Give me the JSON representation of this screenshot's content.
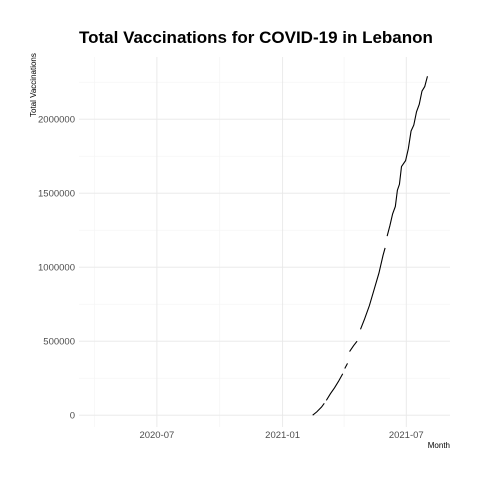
{
  "chart_data": {
    "type": "line",
    "title": "Total Vaccinations for COVID-19 in Lebanon",
    "xlabel": "Month",
    "ylabel": "Total Vaccinations",
    "x_type": "date",
    "xlim": [
      "2020-03-09",
      "2021-09-03"
    ],
    "ylim": [
      -80000,
      2420000
    ],
    "x_ticks": [
      {
        "date": "2020-07-01",
        "label": "2020-07"
      },
      {
        "date": "2021-01-01",
        "label": "2021-01"
      },
      {
        "date": "2021-07-01",
        "label": "2021-07"
      }
    ],
    "x_minor_ticks": [
      "2020-04-01",
      "2020-10-01",
      "2021-04-01"
    ],
    "y_ticks": [
      0,
      500000,
      1000000,
      1500000,
      2000000
    ],
    "y_tick_labels": [
      "0",
      "500000",
      "1000000",
      "1500000",
      "2000000"
    ],
    "y_minor_ticks": [
      250000,
      750000,
      1250000,
      1750000,
      2250000
    ],
    "grid": true,
    "series": [
      {
        "name": "",
        "color": "#000000",
        "segments": [
          [
            {
              "x": "2021-02-14",
              "y": 0
            },
            {
              "x": "2021-02-20",
              "y": 22000
            },
            {
              "x": "2021-02-27",
              "y": 55000
            },
            {
              "x": "2021-03-03",
              "y": 80000
            }
          ],
          [
            {
              "x": "2021-03-06",
              "y": 100000
            },
            {
              "x": "2021-03-12",
              "y": 145000
            },
            {
              "x": "2021-03-18",
              "y": 185000
            },
            {
              "x": "2021-03-24",
              "y": 230000
            },
            {
              "x": "2021-03-30",
              "y": 280000
            }
          ],
          [
            {
              "x": "2021-04-02",
              "y": 315000
            },
            {
              "x": "2021-04-06",
              "y": 350000
            }
          ],
          [
            {
              "x": "2021-04-09",
              "y": 430000
            },
            {
              "x": "2021-04-15",
              "y": 470000
            },
            {
              "x": "2021-04-20",
              "y": 500000
            }
          ],
          [
            {
              "x": "2021-04-25",
              "y": 580000
            },
            {
              "x": "2021-05-01",
              "y": 650000
            },
            {
              "x": "2021-05-08",
              "y": 740000
            },
            {
              "x": "2021-05-15",
              "y": 850000
            },
            {
              "x": "2021-05-22",
              "y": 960000
            },
            {
              "x": "2021-05-28",
              "y": 1080000
            },
            {
              "x": "2021-05-31",
              "y": 1130000
            }
          ],
          [
            {
              "x": "2021-06-03",
              "y": 1210000
            },
            {
              "x": "2021-06-07",
              "y": 1280000
            },
            {
              "x": "2021-06-11",
              "y": 1360000
            },
            {
              "x": "2021-06-15",
              "y": 1410000
            },
            {
              "x": "2021-06-18",
              "y": 1520000
            },
            {
              "x": "2021-06-21",
              "y": 1560000
            },
            {
              "x": "2021-06-24",
              "y": 1680000
            },
            {
              "x": "2021-06-30",
              "y": 1720000
            },
            {
              "x": "2021-07-04",
              "y": 1800000
            },
            {
              "x": "2021-07-08",
              "y": 1920000
            },
            {
              "x": "2021-07-12",
              "y": 1960000
            },
            {
              "x": "2021-07-16",
              "y": 2050000
            },
            {
              "x": "2021-07-20",
              "y": 2100000
            },
            {
              "x": "2021-07-24",
              "y": 2190000
            },
            {
              "x": "2021-07-28",
              "y": 2220000
            },
            {
              "x": "2021-08-01",
              "y": 2290000
            }
          ]
        ]
      }
    ]
  }
}
